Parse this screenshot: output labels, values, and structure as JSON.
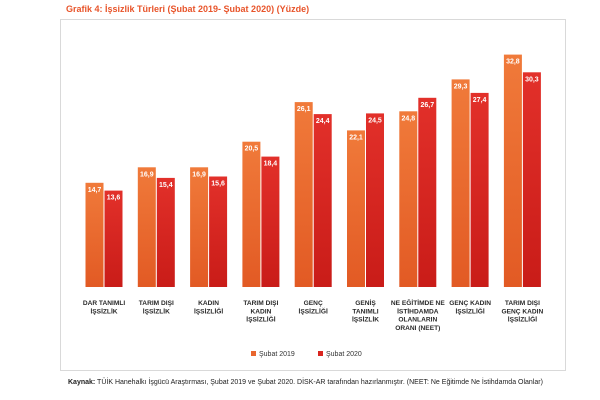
{
  "title": "Grafik 4: İşsizlik Türleri (Şubat 2019- Şubat 2020) (Yüzde)",
  "source": {
    "label": "Kaynak:",
    "text": " TÜİK Hanehalkı İşgücü Araştırması, Şubat 2019 ve Şubat 2020. DİSK-AR tarafından hazırlanmıştır. (NEET: Ne Eğitimde Ne İstihdamda Olanlar)"
  },
  "colors": {
    "series_2019": "#e8662e",
    "series_2020": "#d9251f"
  },
  "chart_data": {
    "type": "bar",
    "title": "Grafik 4: İşsizlik Türleri (Şubat 2019- Şubat 2020) (Yüzde)",
    "xlabel": "",
    "ylabel": "",
    "ylim": [
      0,
      35
    ],
    "grid": false,
    "legend_position": "bottom",
    "categories": [
      [
        "DAR TANIMLI",
        "İŞSİZLİK"
      ],
      [
        "TARIM DIŞI",
        "İŞSİZLİK"
      ],
      [
        "KADIN",
        "İŞSİZLİĞİ"
      ],
      [
        "TARIM DIŞI",
        "KADIN",
        "İŞSİZLİĞİ"
      ],
      [
        "GENÇ",
        "İŞSİZLİĞİ"
      ],
      [
        "GENİŞ",
        "TANIMLI",
        "İŞSİZLİK"
      ],
      [
        "NE EĞİTİMDE NE",
        "İSTİHDAMDA",
        "OLANLARIN",
        "ORANI (NEET)"
      ],
      [
        "GENÇ KADIN",
        "İŞSİZLİĞİ"
      ],
      [
        "TARIM DIŞI",
        "GENÇ KADIN",
        "İŞSİZLİĞİ"
      ]
    ],
    "series": [
      {
        "name": "Şubat 2019",
        "values": [
          14.7,
          16.9,
          16.9,
          20.5,
          26.1,
          22.1,
          24.8,
          29.3,
          32.8
        ],
        "labels": [
          "14,7",
          "16,9",
          "16,9",
          "20,5",
          "26,1",
          "22,1",
          "24,8",
          "29,3",
          "32,8"
        ]
      },
      {
        "name": "Şubat 2020",
        "values": [
          13.6,
          15.4,
          15.6,
          18.4,
          24.4,
          24.5,
          26.7,
          27.4,
          30.3
        ],
        "labels": [
          "13,6",
          "15,4",
          "15,6",
          "18,4",
          "24,4",
          "24,5",
          "26,7",
          "27,4",
          "30,3"
        ]
      }
    ]
  }
}
